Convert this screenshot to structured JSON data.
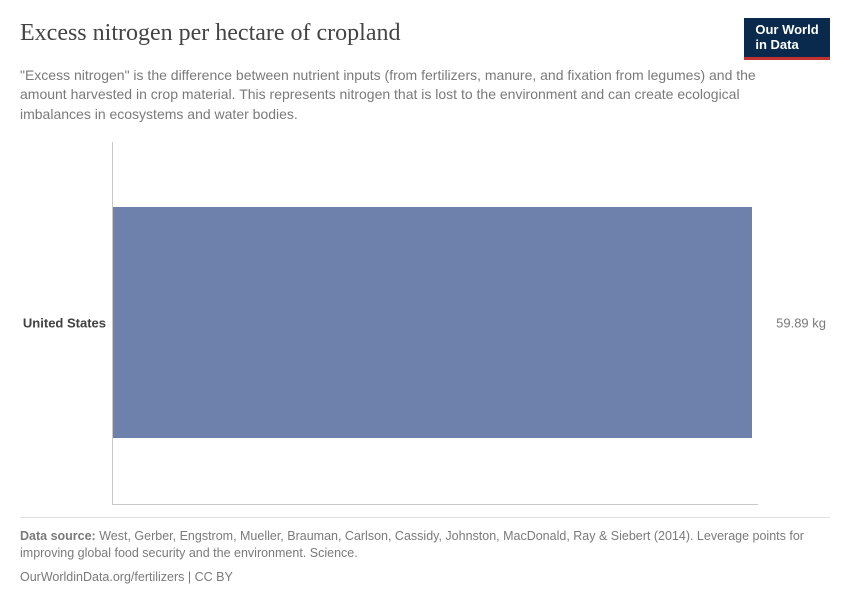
{
  "header": {
    "title": "Excess nitrogen per hectare of cropland",
    "subtitle": "\"Excess nitrogen\" is the difference between nutrient inputs (from fertilizers, manure, and fixation from legumes) and the amount harvested in crop material. This represents nitrogen that is lost to the environment and can create ecological imbalances in ecosystems and water bodies.",
    "logo_line1": "Our World",
    "logo_line2": "in Data",
    "logo_bg": "#0a2a4d",
    "logo_underline": "#c0322f"
  },
  "chart": {
    "type": "bar-horizontal",
    "categories": [
      "United States"
    ],
    "values": [
      59.89
    ],
    "value_labels": [
      "59.89 kg"
    ],
    "bar_color": "#6e80ac",
    "bar_fraction_of_plot_width": 0.99,
    "axis_color": "#c9c9c9",
    "background_color": "#ffffff",
    "y_label_fontsize": 13,
    "y_label_fontweight": 700,
    "value_label_fontsize": 13,
    "value_label_color": "#7a7a7a"
  },
  "footer": {
    "source_label": "Data source:",
    "source_text": "West, Gerber, Engstrom, Mueller, Brauman, Carlson, Cassidy, Johnston, MacDonald, Ray & Siebert (2014). Leverage points for improving global food security and the environment. Science.",
    "link_text": "OurWorldinData.org/fertilizers",
    "license_sep": " | ",
    "license_text": "CC BY"
  }
}
